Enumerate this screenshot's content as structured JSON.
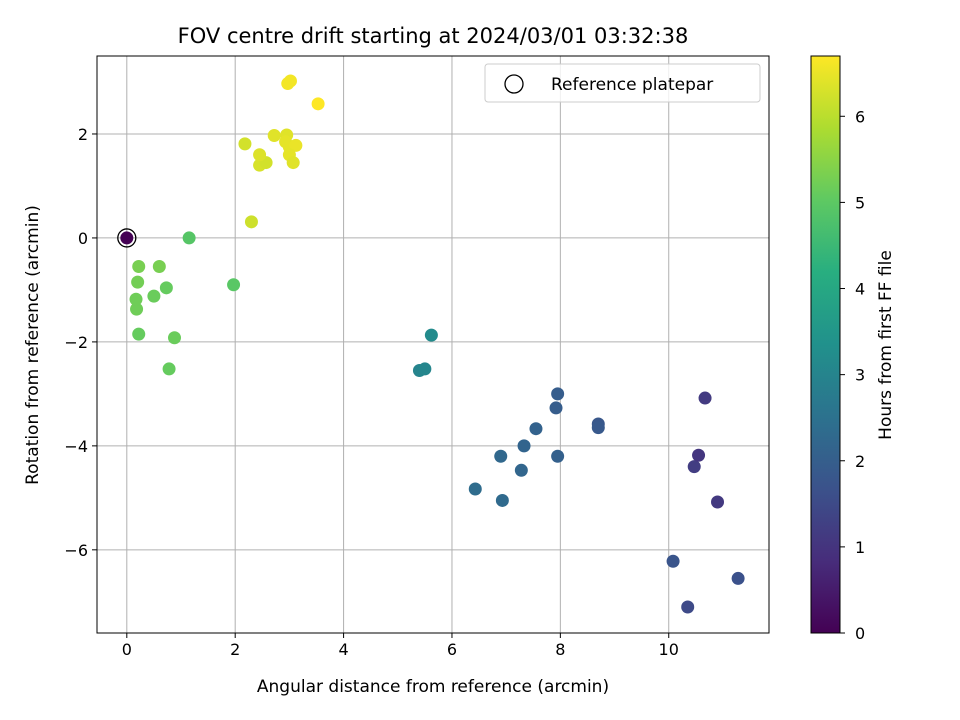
{
  "chart_data": {
    "type": "scatter",
    "title": "FOV centre drift starting at 2024/03/01 03:32:38",
    "xlabel": "Angular distance from reference (arcmin)",
    "ylabel": "Rotation from reference (arcmin)",
    "xlim": [
      -0.55,
      11.85
    ],
    "ylim": [
      -7.6,
      3.5
    ],
    "xticks": [
      0,
      2,
      4,
      6,
      8,
      10
    ],
    "yticks": [
      -6,
      -4,
      -2,
      0,
      2
    ],
    "grid": true,
    "legend": {
      "placement": "top-right",
      "entries": [
        "Reference platepar"
      ]
    },
    "colorbar": {
      "label": "Hours from first FF file",
      "range": [
        0,
        6.7
      ],
      "ticks": [
        0,
        1,
        2,
        3,
        4,
        5,
        6
      ],
      "colormap": "viridis"
    },
    "reference_point": {
      "x": 0,
      "y": 0,
      "hours": 0
    },
    "points": [
      {
        "x": 0.0,
        "y": 0.0,
        "hours": 0.0
      },
      {
        "x": 10.35,
        "y": -7.1,
        "hours": 1.5
      },
      {
        "x": 11.28,
        "y": -6.55,
        "hours": 1.65
      },
      {
        "x": 10.08,
        "y": -6.22,
        "hours": 1.75
      },
      {
        "x": 10.9,
        "y": -5.08,
        "hours": 1.1
      },
      {
        "x": 10.47,
        "y": -4.4,
        "hours": 1.2
      },
      {
        "x": 10.55,
        "y": -4.18,
        "hours": 1.05
      },
      {
        "x": 10.67,
        "y": -3.08,
        "hours": 1.15
      },
      {
        "x": 8.7,
        "y": -3.58,
        "hours": 1.8
      },
      {
        "x": 8.7,
        "y": -3.65,
        "hours": 1.85
      },
      {
        "x": 7.95,
        "y": -3.0,
        "hours": 1.95
      },
      {
        "x": 7.92,
        "y": -3.27,
        "hours": 1.95
      },
      {
        "x": 7.95,
        "y": -4.2,
        "hours": 2.05
      },
      {
        "x": 7.55,
        "y": -3.67,
        "hours": 2.1
      },
      {
        "x": 7.33,
        "y": -4.0,
        "hours": 2.15
      },
      {
        "x": 7.28,
        "y": -4.47,
        "hours": 2.2
      },
      {
        "x": 6.9,
        "y": -4.2,
        "hours": 2.25
      },
      {
        "x": 6.93,
        "y": -5.05,
        "hours": 2.3
      },
      {
        "x": 6.43,
        "y": -4.83,
        "hours": 2.35
      },
      {
        "x": 5.4,
        "y": -2.55,
        "hours": 3.0
      },
      {
        "x": 5.5,
        "y": -2.52,
        "hours": 3.05
      },
      {
        "x": 5.62,
        "y": -1.87,
        "hours": 3.2
      },
      {
        "x": 0.78,
        "y": -2.52,
        "hours": 5.1
      },
      {
        "x": 0.88,
        "y": -1.92,
        "hours": 5.15
      },
      {
        "x": 0.22,
        "y": -1.85,
        "hours": 5.1
      },
      {
        "x": 0.18,
        "y": -1.37,
        "hours": 5.2
      },
      {
        "x": 0.17,
        "y": -1.18,
        "hours": 5.2
      },
      {
        "x": 0.5,
        "y": -1.12,
        "hours": 5.15
      },
      {
        "x": 0.73,
        "y": -0.96,
        "hours": 5.1
      },
      {
        "x": 0.2,
        "y": -0.85,
        "hours": 5.25
      },
      {
        "x": 0.22,
        "y": -0.55,
        "hours": 5.3
      },
      {
        "x": 0.6,
        "y": -0.55,
        "hours": 5.3
      },
      {
        "x": 1.97,
        "y": -0.9,
        "hours": 4.95
      },
      {
        "x": 1.15,
        "y": 0.0,
        "hours": 4.9
      },
      {
        "x": 2.3,
        "y": 0.31,
        "hours": 6.2
      },
      {
        "x": 2.45,
        "y": 1.4,
        "hours": 6.3
      },
      {
        "x": 2.57,
        "y": 1.45,
        "hours": 6.25
      },
      {
        "x": 2.45,
        "y": 1.6,
        "hours": 6.35
      },
      {
        "x": 2.18,
        "y": 1.81,
        "hours": 6.25
      },
      {
        "x": 2.72,
        "y": 1.97,
        "hours": 6.4
      },
      {
        "x": 2.95,
        "y": 1.98,
        "hours": 6.4
      },
      {
        "x": 2.93,
        "y": 1.85,
        "hours": 6.45
      },
      {
        "x": 3.0,
        "y": 1.75,
        "hours": 6.45
      },
      {
        "x": 3.12,
        "y": 1.78,
        "hours": 6.5
      },
      {
        "x": 3.0,
        "y": 1.6,
        "hours": 6.45
      },
      {
        "x": 3.07,
        "y": 1.45,
        "hours": 6.4
      },
      {
        "x": 2.97,
        "y": 2.97,
        "hours": 6.6
      },
      {
        "x": 3.02,
        "y": 3.02,
        "hours": 6.6
      },
      {
        "x": 3.53,
        "y": 2.58,
        "hours": 6.7
      }
    ]
  }
}
